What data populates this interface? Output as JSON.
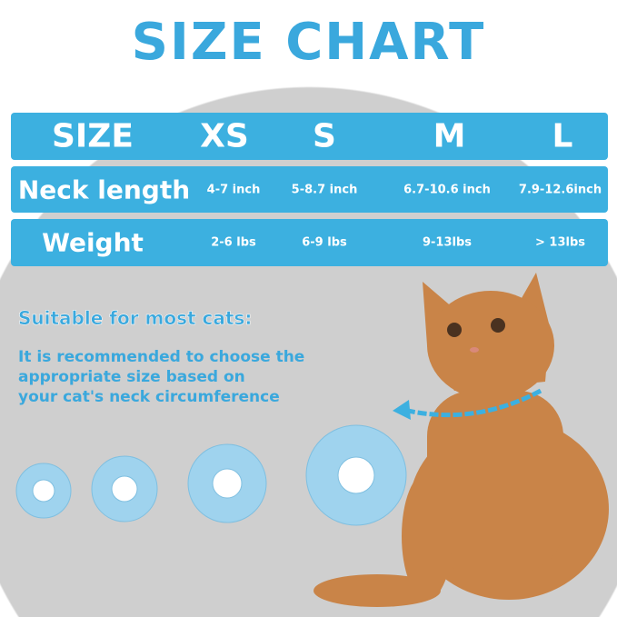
{
  "title": "SIZE CHART",
  "table": {
    "header": [
      "SIZE",
      "XS",
      "S",
      "M",
      "L"
    ],
    "rows": [
      {
        "label": "Neck length",
        "values": [
          "4-7 inch",
          "5-8.7 inch",
          "6.7-10.6 inch",
          "7.9-12.6inch"
        ]
      },
      {
        "label": "Weight",
        "values": [
          "2-6 lbs",
          "6-9 lbs",
          "9-13lbs",
          "> 13lbs"
        ]
      }
    ]
  },
  "subtitle": "Suitable for most cats:",
  "recommendation": "It is recommended to choose the\nappropriate size based on\nyour cat's neck circumference",
  "colors": {
    "accent": "#3cb0e0",
    "collar": "#9fd3ee",
    "background_circle": "#cfcfcf",
    "cat": "#c98448"
  }
}
